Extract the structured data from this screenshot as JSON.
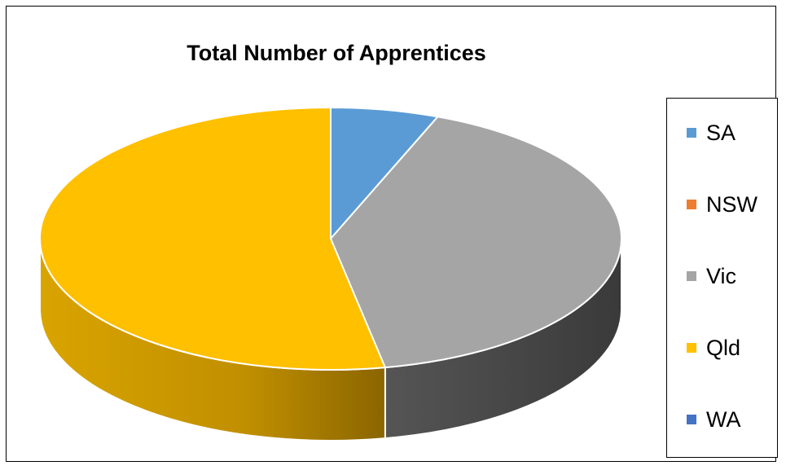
{
  "chart_data": {
    "type": "pie",
    "title": "Total Number of Apprentices",
    "categories": [
      "SA",
      "NSW",
      "Vic",
      "Qld",
      "WA"
    ],
    "values": [
      6,
      0,
      41,
      53,
      0
    ],
    "colors": [
      "#5B9BD5",
      "#ED7D31",
      "#A5A5A5",
      "#FFC000",
      "#4472C4"
    ],
    "style": "3d-tilted",
    "legend_position": "right",
    "data_labels": false
  }
}
